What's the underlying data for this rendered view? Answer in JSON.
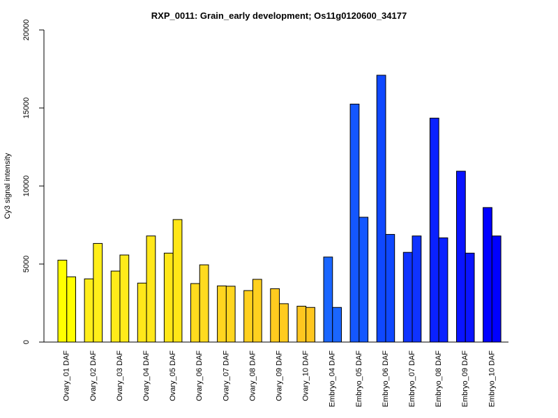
{
  "chart_data": {
    "type": "bar",
    "title": "RXP_0011: Grain_early development; Os11g0120600_34177",
    "xlabel": "",
    "ylabel": "Cy3 signal intensity",
    "ylim": [
      0,
      20000
    ],
    "yticks": [
      0,
      5000,
      10000,
      15000,
      20000
    ],
    "ytick_labels": [
      "0",
      "5000",
      "10000",
      "15000",
      "20000"
    ],
    "grid": false,
    "legend": "none",
    "categories": [
      "Ovary_01 DAF",
      "Ovary_02 DAF",
      "Ovary_03 DAF",
      "Ovary_04 DAF",
      "Ovary_05 DAF",
      "Ovary_06 DAF",
      "Ovary_07 DAF",
      "Ovary_08 DAF",
      "Ovary_09 DAF",
      "Ovary_10 DAF",
      "Embryo_04 DAF",
      "Embryo_05 DAF",
      "Embryo_06 DAF",
      "Embryo_07 DAF",
      "Embryo_08 DAF",
      "Embryo_09 DAF",
      "Embryo_10 DAF"
    ],
    "colors": [
      "#ffff00",
      "#ffee1a",
      "#ffeb1a",
      "#ffe71a",
      "#ffe617",
      "#ffdb1f",
      "#ffd61f",
      "#ffd01f",
      "#ffcb1f",
      "#ffc61f",
      "#1a66ff",
      "#1457ff",
      "#0f48ff",
      "#0f33ff",
      "#0a21ff",
      "#0a14ff",
      "#0000ff"
    ],
    "series": [
      {
        "values": [
          5250,
          4050,
          4550,
          3780,
          5700,
          3750,
          3600,
          3300,
          3420,
          2300,
          5450,
          15250,
          17100,
          5750,
          14350,
          10950,
          8620
        ]
      },
      {
        "values": [
          4180,
          6320,
          5580,
          6800,
          7850,
          4950,
          3580,
          4020,
          2460,
          2220,
          2220,
          8000,
          6900,
          6800,
          6680,
          5700,
          6800
        ]
      }
    ]
  }
}
